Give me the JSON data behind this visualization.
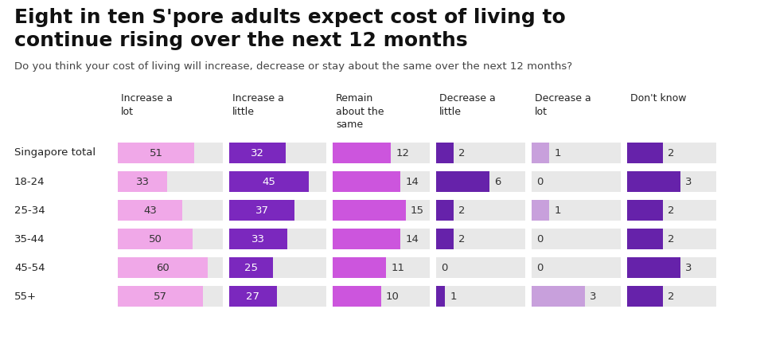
{
  "title": "Eight in ten S'pore adults expect cost of living to\ncontinue rising over the next 12 months",
  "subtitle": "Do you think your cost of living will increase, decrease or stay about the same over the next 12 months?",
  "rows": [
    "Singapore total",
    "18-24",
    "25-34",
    "35-44",
    "45-54",
    "55+"
  ],
  "col_headers": [
    "Increase a\nlot",
    "Increase a\nlittle",
    "Remain\nabout the\nsame",
    "Decrease a\nlittle",
    "Decrease a\nlot",
    "Don't know"
  ],
  "data": [
    [
      51,
      32,
      12,
      2,
      1,
      2
    ],
    [
      33,
      45,
      14,
      6,
      0,
      3
    ],
    [
      43,
      37,
      15,
      2,
      1,
      2
    ],
    [
      50,
      33,
      14,
      2,
      0,
      2
    ],
    [
      60,
      25,
      11,
      0,
      0,
      3
    ],
    [
      57,
      27,
      10,
      1,
      3,
      2
    ]
  ],
  "bar_colors": [
    "#f0a8e8",
    "#7b28be",
    "#cc55dd",
    "#6622aa",
    "#c8a0dc",
    "#6622aa"
  ],
  "text_on_bar": [
    "#333333",
    "#ffffff",
    "#ffffff",
    "#ffffff",
    "#ffffff",
    "#ffffff"
  ],
  "col_max_vals": [
    70,
    55,
    20,
    10,
    5,
    5
  ],
  "cell_bg": "#e8e8e8",
  "title_fontsize": 18,
  "subtitle_fontsize": 9.5,
  "header_fontsize": 9,
  "data_fontsize": 9.5,
  "row_label_fontsize": 9.5
}
